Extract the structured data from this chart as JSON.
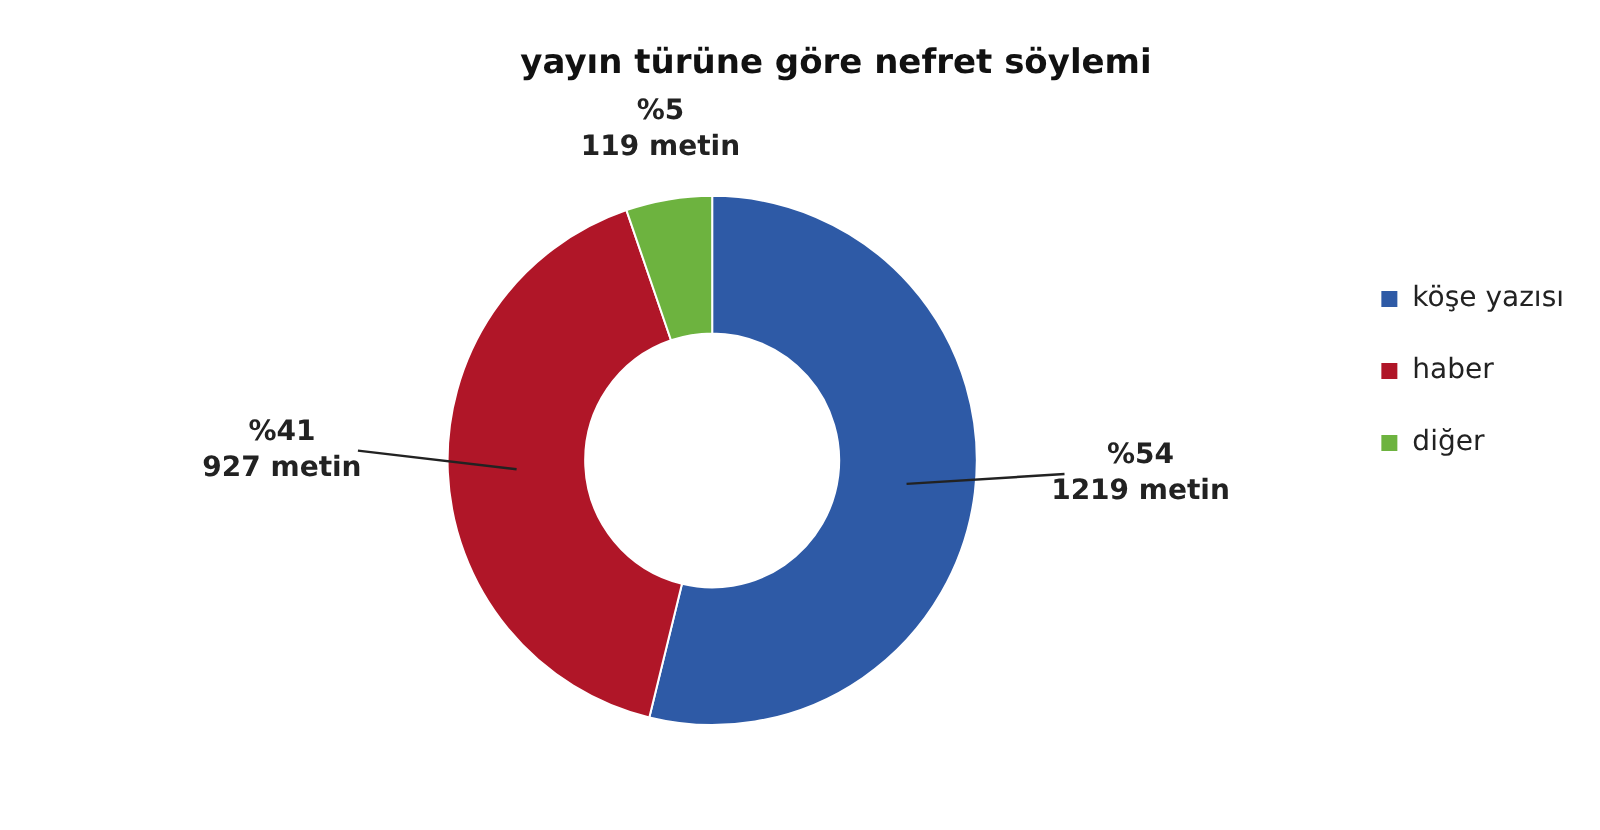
{
  "chart_data": {
    "type": "donut",
    "title": "yayın türüne göre nefret söylemi",
    "categories": [
      "köşe yazısı",
      "haber",
      "diğer"
    ],
    "values": [
      1219,
      927,
      119
    ],
    "colors": [
      "#2e5aa6",
      "#b01628",
      "#6db33f"
    ],
    "value_labels": [
      "1219 metin",
      "927 metin",
      "119 metin"
    ],
    "annotations": [
      "%54",
      "%41",
      "%5"
    ],
    "legend": "right"
  }
}
